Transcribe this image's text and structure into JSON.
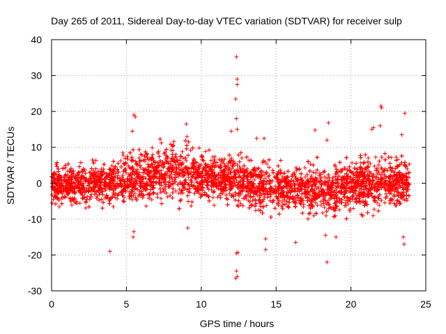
{
  "chart_data": {
    "type": "scatter",
    "title": "Day 265 of 2011, Sidereal Day-to-day VTEC variation (SDTVAR) for receiver sulp",
    "xlabel": "GPS time / hours",
    "ylabel": "SDTVAR / TECUs",
    "xlim": [
      0,
      25
    ],
    "ylim": [
      -30,
      40
    ],
    "xticks": [
      0,
      5,
      10,
      15,
      20,
      25
    ],
    "yticks": [
      -30,
      -20,
      -10,
      0,
      10,
      20,
      30,
      40
    ],
    "grid": true,
    "marker": "+",
    "color": "#ff0000",
    "series": [
      {
        "name": "SDTVAR",
        "band": {
          "x": [
            0,
            1,
            2,
            3,
            4,
            5,
            6,
            7,
            8,
            9,
            10,
            11,
            12,
            13,
            14,
            15,
            16,
            17,
            18,
            19,
            20,
            21,
            22,
            23,
            23.9
          ],
          "center": [
            -0.5,
            -0.5,
            -0.5,
            0,
            0.5,
            1,
            1.5,
            2.5,
            3,
            2.5,
            2,
            1.5,
            1,
            0,
            -0.5,
            -1,
            -1.5,
            -2,
            -2,
            -1.5,
            -1,
            0,
            0.5,
            0,
            0
          ],
          "spread": [
            4.5,
            4.5,
            4.5,
            4.5,
            5,
            5,
            5.5,
            6,
            6.5,
            6,
            6,
            5.5,
            5.5,
            5.5,
            5.5,
            5,
            5,
            5.5,
            5.5,
            5.5,
            5.5,
            6,
            6,
            6,
            6
          ]
        },
        "outliers": {
          "x": [
            12.35,
            12.4,
            12.4,
            12.3,
            12.35,
            12.4,
            12.35,
            12.35,
            12.3,
            12.4,
            12.45,
            5.5,
            5.6,
            5.4,
            5.5,
            5.45,
            9.0,
            9.1,
            9.05,
            3.9,
            14.3,
            14.3,
            14.2,
            18.5,
            18.4,
            18.3,
            18.4,
            17.6,
            22.0,
            22.05,
            21.95,
            23.6,
            23.55,
            23.5,
            23.4,
            21.4,
            21.5,
            13.7,
            12.0,
            16.3,
            19.0
          ],
          "y": [
            35.2,
            29.0,
            27.5,
            23.5,
            18.0,
            15.0,
            -19.5,
            -24.5,
            -26.5,
            -26.0,
            -19.3,
            19.0,
            18.5,
            14.5,
            -13.5,
            -15.0,
            16.5,
            -12.5,
            13.0,
            -19.0,
            -18.5,
            -15.5,
            12.5,
            16.8,
            -22.0,
            -14.5,
            12.0,
            14.8,
            21.5,
            21.0,
            16.0,
            19.5,
            -17.0,
            -15.0,
            13.5,
            15.0,
            15.5,
            12.5,
            14.5,
            -16.5,
            -15.0
          ]
        }
      }
    ]
  }
}
